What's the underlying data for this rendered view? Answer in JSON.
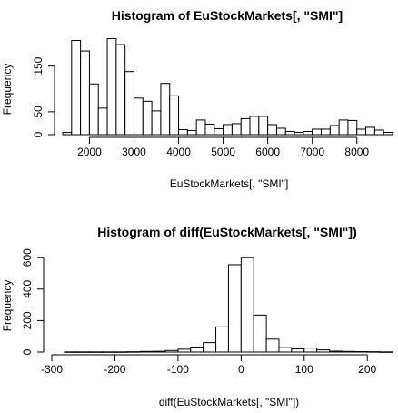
{
  "chart_data": [
    {
      "type": "bar",
      "title": "Histogram of EuStockMarkets[, \"SMI\"]",
      "xlabel": "EuStockMarkets[, \"SMI\"]",
      "ylabel": "Frequency",
      "bin_width": 200,
      "bin_start": 1400,
      "values": [
        5,
        206,
        183,
        111,
        58,
        210,
        197,
        138,
        80,
        73,
        52,
        112,
        85,
        11,
        9,
        32,
        23,
        13,
        22,
        24,
        35,
        40,
        40,
        22,
        14,
        7,
        5,
        7,
        12,
        12,
        20,
        32,
        31,
        12,
        16,
        10,
        5
      ],
      "xlim": [
        1400,
        8800
      ],
      "ylim": [
        0,
        215
      ],
      "xticks": [
        2000,
        3000,
        4000,
        5000,
        6000,
        7000,
        8000
      ],
      "yticks": [
        0,
        50,
        150
      ],
      "grid": false
    },
    {
      "type": "bar",
      "title": "Histogram of diff(EuStockMarkets[, \"SMI\"])",
      "xlabel": "diff(EuStockMarkets[, \"SMI\"])",
      "ylabel": "Frequency",
      "bin_width": 20,
      "bin_start": -280,
      "values": [
        1,
        1,
        1,
        1,
        1,
        2,
        4,
        5,
        10,
        18,
        32,
        60,
        160,
        555,
        600,
        235,
        82,
        28,
        20,
        25,
        14,
        6,
        4,
        3,
        2,
        1
      ],
      "xlim": [
        -300,
        240
      ],
      "ylim": [
        0,
        630
      ],
      "xticks": [
        -300,
        -200,
        -100,
        0,
        100,
        200
      ],
      "yticks": [
        0,
        200,
        400,
        600
      ],
      "grid": false
    }
  ]
}
